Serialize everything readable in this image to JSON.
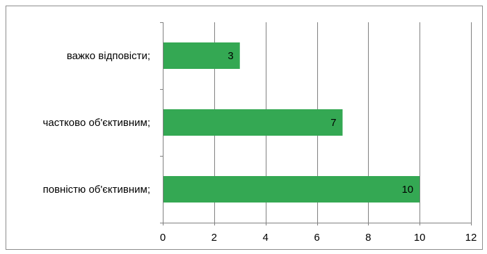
{
  "chart_data": {
    "type": "bar",
    "orientation": "horizontal",
    "categories": [
      "важко відповісти;",
      "частково об'єктивним;",
      "повністю об'єктивним;"
    ],
    "values": [
      3,
      7,
      10
    ],
    "data_labels": [
      "3",
      "7",
      "10"
    ],
    "xlim": [
      0,
      12
    ],
    "x_ticks": [
      0,
      2,
      4,
      6,
      8,
      10,
      12
    ],
    "x_tick_labels": [
      "0",
      "2",
      "4",
      "6",
      "8",
      "10",
      "12"
    ],
    "title": "",
    "xlabel": "",
    "ylabel": "",
    "grid": "vertical",
    "bar_color": "#34a853",
    "gridline_color": "#7f7f7f",
    "axis_color": "#7f7f7f",
    "frame_color": "#8c8c8c"
  }
}
